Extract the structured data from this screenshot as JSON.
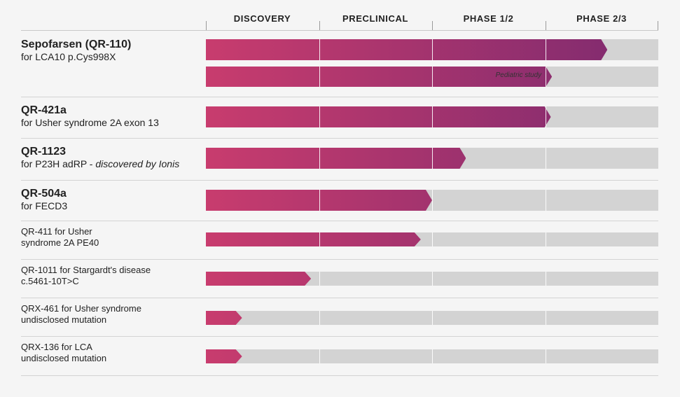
{
  "chart_data": {
    "type": "pipeline",
    "phases": [
      "DISCOVERY",
      "PRECLINICAL",
      "PHASE 1/2",
      "PHASE 2/3"
    ],
    "rows": [
      {
        "name": "Sepofarsen (QR-110)",
        "desc": "for LCA10 p.Cys998X",
        "progress": 3.55,
        "style": "big",
        "sub": {
          "label": "Pediatric study",
          "progress": 3.0
        }
      },
      {
        "name": "QR-421a",
        "desc": "for Usher syndrome 2A exon 13",
        "progress": 3.05,
        "style": "big"
      },
      {
        "name": "QR-1123",
        "desc": "for P23H adRP - ",
        "desc_em": "discovered by Ionis",
        "progress": 2.3,
        "style": "big"
      },
      {
        "name": "QR-504a",
        "desc": "for FECD3",
        "progress": 2.0,
        "style": "big"
      },
      {
        "name": "QR-411 for Usher",
        "desc": "syndrome 2A PE40",
        "progress": 1.9,
        "style": "small"
      },
      {
        "name": "QR-1011 for Stargardt's disease",
        "desc": "c.5461-10T>C",
        "progress": 0.93,
        "style": "small"
      },
      {
        "name": "QRX-461 for Usher syndrome",
        "desc": "undisclosed mutation",
        "progress": 0.32,
        "style": "small"
      },
      {
        "name": "QRX-136 for LCA",
        "desc": "undisclosed mutation",
        "progress": 0.32,
        "style": "small"
      }
    ],
    "unit": "phases completed (0-4)",
    "colors": {
      "start": "#c83c6e",
      "end": "#7c2a6f",
      "track": "#d3d3d3"
    }
  }
}
